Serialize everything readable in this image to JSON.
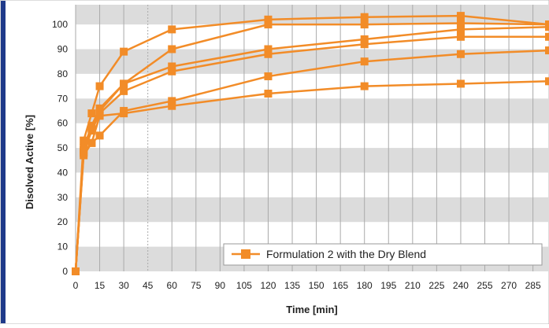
{
  "colors": {
    "series": "#f28c28",
    "band": "#dcdcdc",
    "grid": "#aaaaaa",
    "frame_accent": "#1f3a8a",
    "text": "#222222"
  },
  "chart_data": {
    "type": "line",
    "xlabel": "Time [min]",
    "ylabel": "Disolved Active  [%]",
    "xlim": [
      0,
      295
    ],
    "ylim": [
      0,
      108
    ],
    "x_ticks": [
      0,
      15,
      30,
      45,
      60,
      75,
      90,
      105,
      120,
      135,
      150,
      165,
      180,
      195,
      210,
      225,
      240,
      255,
      270,
      285
    ],
    "y_ticks": [
      0,
      10,
      20,
      30,
      40,
      50,
      60,
      70,
      80,
      90,
      100
    ],
    "alternating_bands": true,
    "grid": "vertical",
    "legend": {
      "position": "bottom-right",
      "entries": [
        "Formulation 2 with the Dry Blend"
      ]
    },
    "x": [
      0,
      5,
      10,
      15,
      30,
      60,
      120,
      180,
      240,
      295
    ],
    "series": [
      {
        "values": [
          0,
          53,
          64,
          75,
          89,
          98,
          102,
          103,
          103.5,
          100
        ]
      },
      {
        "values": [
          0,
          50,
          59,
          66,
          76,
          90,
          100,
          100,
          100.5,
          100
        ]
      },
      {
        "values": [
          0,
          49,
          58,
          65,
          76,
          83,
          90,
          94,
          98,
          99
        ]
      },
      {
        "values": [
          0,
          48,
          57,
          64,
          73,
          81,
          88,
          92,
          95,
          95
        ]
      },
      {
        "values": [
          0,
          48,
          52,
          55,
          65,
          69,
          79,
          85,
          88,
          89.5
        ]
      },
      {
        "values": [
          0,
          47,
          52,
          63,
          64,
          67,
          72,
          75,
          76,
          77
        ]
      }
    ]
  }
}
